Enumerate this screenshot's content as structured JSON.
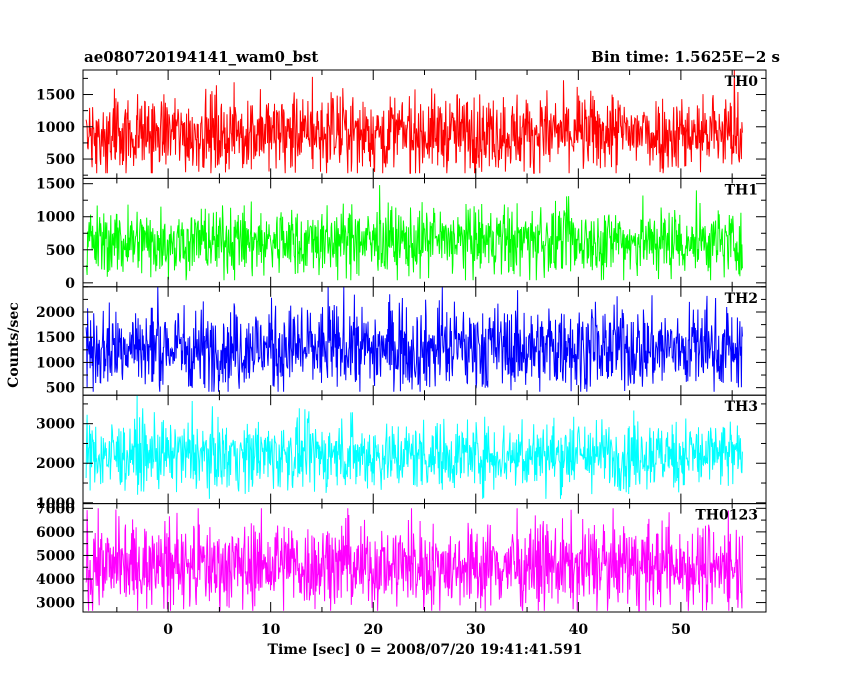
{
  "header": {
    "left_title": "ae080720194141_wam0_bst",
    "right_title": "Bin time: 1.5625E−2 s"
  },
  "chart_data": {
    "type": "line",
    "xlabel": "Time [sec] 0 = 2008/07/20 19:41:41.591",
    "ylabel": "Counts/sec",
    "xlim": [
      -8.3,
      58.3
    ],
    "x_data_range": [
      -8,
      56
    ],
    "x_ticks": [
      0,
      10,
      20,
      30,
      40,
      50
    ],
    "grid": false,
    "panels": [
      {
        "name": "TH0",
        "color": "#ff0000",
        "ylim": [
          200,
          1880
        ],
        "yticks": [
          500,
          1000,
          1500
        ],
        "base": 900,
        "spread": 300,
        "floor": 280,
        "ceil": 1880
      },
      {
        "name": "TH1",
        "color": "#00ff00",
        "ylim": [
          -60,
          1580
        ],
        "yticks": [
          0,
          500,
          1000,
          1500
        ],
        "base": 620,
        "spread": 260,
        "floor": 40,
        "ceil": 1580
      },
      {
        "name": "TH2",
        "color": "#0000ff",
        "ylim": [
          350,
          2500
        ],
        "yticks": [
          500,
          1000,
          1500,
          2000
        ],
        "base": 1280,
        "spread": 420,
        "floor": 420,
        "ceil": 2500
      },
      {
        "name": "TH3",
        "color": "#00ffff",
        "ylim": [
          980,
          3720
        ],
        "yticks": [
          1000,
          2000,
          3000
        ],
        "base": 2200,
        "spread": 430,
        "floor": 1100,
        "ceil": 3720
      },
      {
        "name": "TH0123",
        "color": "#ff00ff",
        "ylim": [
          2600,
          7200
        ],
        "yticks": [
          3000,
          4000,
          5000,
          6000,
          7000
        ],
        "base": 4550,
        "spread": 900,
        "floor": 2650,
        "ceil": 7000
      }
    ]
  }
}
